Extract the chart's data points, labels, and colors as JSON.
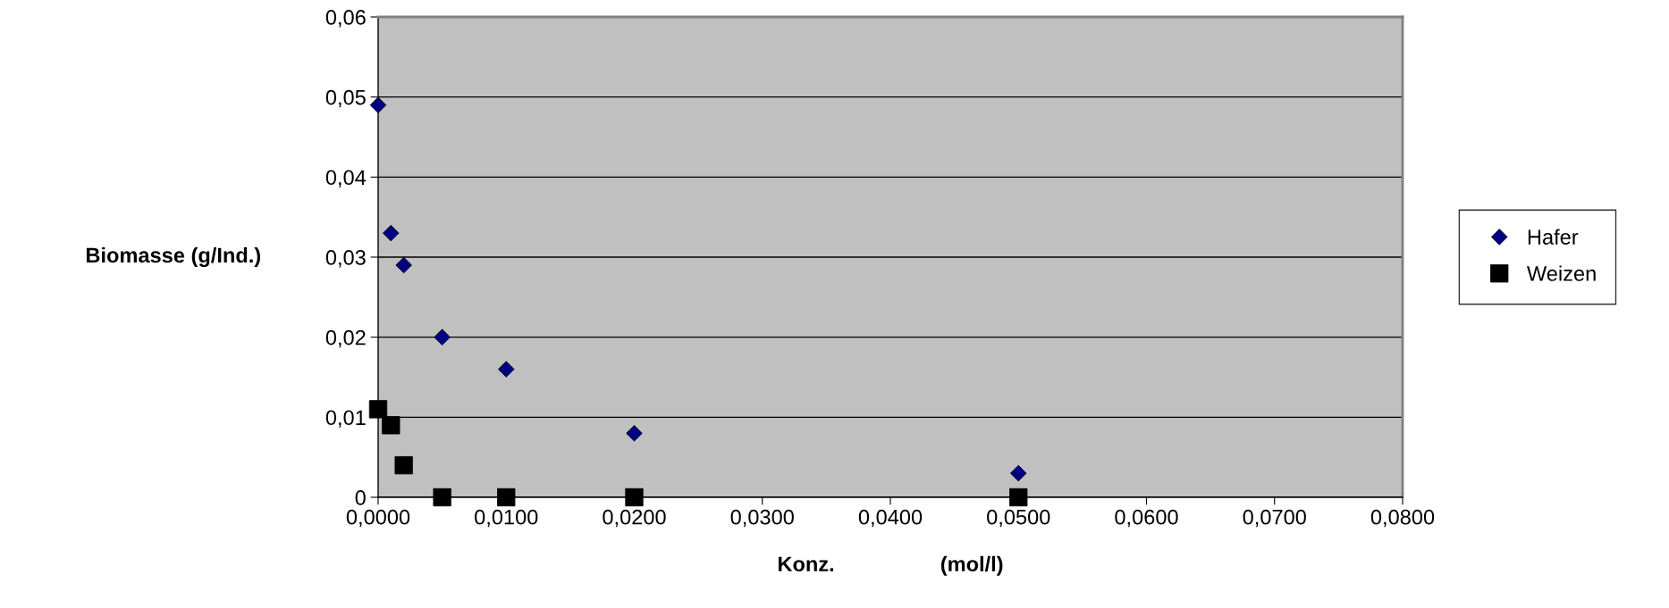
{
  "chart_data": {
    "type": "scatter",
    "xlabel": "Konz.                  (mol/l)",
    "ylabel": "Biomasse (g/Ind.)",
    "x": [
      0,
      0.001,
      0.002,
      0.005,
      0.01,
      0.02,
      0.05
    ],
    "series": [
      {
        "name": "Hafer",
        "color": "#000080",
        "marker": "diamond",
        "values": [
          0.049,
          0.033,
          0.029,
          0.02,
          0.016,
          0.008,
          0.003
        ]
      },
      {
        "name": "Weizen",
        "color": "#000000",
        "marker": "square",
        "values": [
          0.011,
          0.009,
          0.004,
          0,
          0,
          0,
          0
        ]
      }
    ],
    "xlim": [
      0,
      0.08
    ],
    "ylim": [
      0,
      0.06
    ],
    "xticks": [
      {
        "value": 0,
        "label": "0,0000"
      },
      {
        "value": 0.01,
        "label": "0,0100"
      },
      {
        "value": 0.02,
        "label": "0,0200"
      },
      {
        "value": 0.03,
        "label": "0,0300"
      },
      {
        "value": 0.04,
        "label": "0,0400"
      },
      {
        "value": 0.05,
        "label": "0,0500"
      },
      {
        "value": 0.06,
        "label": "0,0600"
      },
      {
        "value": 0.07,
        "label": "0,0700"
      },
      {
        "value": 0.08,
        "label": "0,0800"
      }
    ],
    "yticks": [
      {
        "value": 0,
        "label": "0"
      },
      {
        "value": 0.01,
        "label": "0,01"
      },
      {
        "value": 0.02,
        "label": "0,02"
      },
      {
        "value": 0.03,
        "label": "0,03"
      },
      {
        "value": 0.04,
        "label": "0,04"
      },
      {
        "value": 0.05,
        "label": "0,05"
      },
      {
        "value": 0.06,
        "label": "0,06"
      }
    ],
    "grid": "y",
    "legend": "right"
  }
}
